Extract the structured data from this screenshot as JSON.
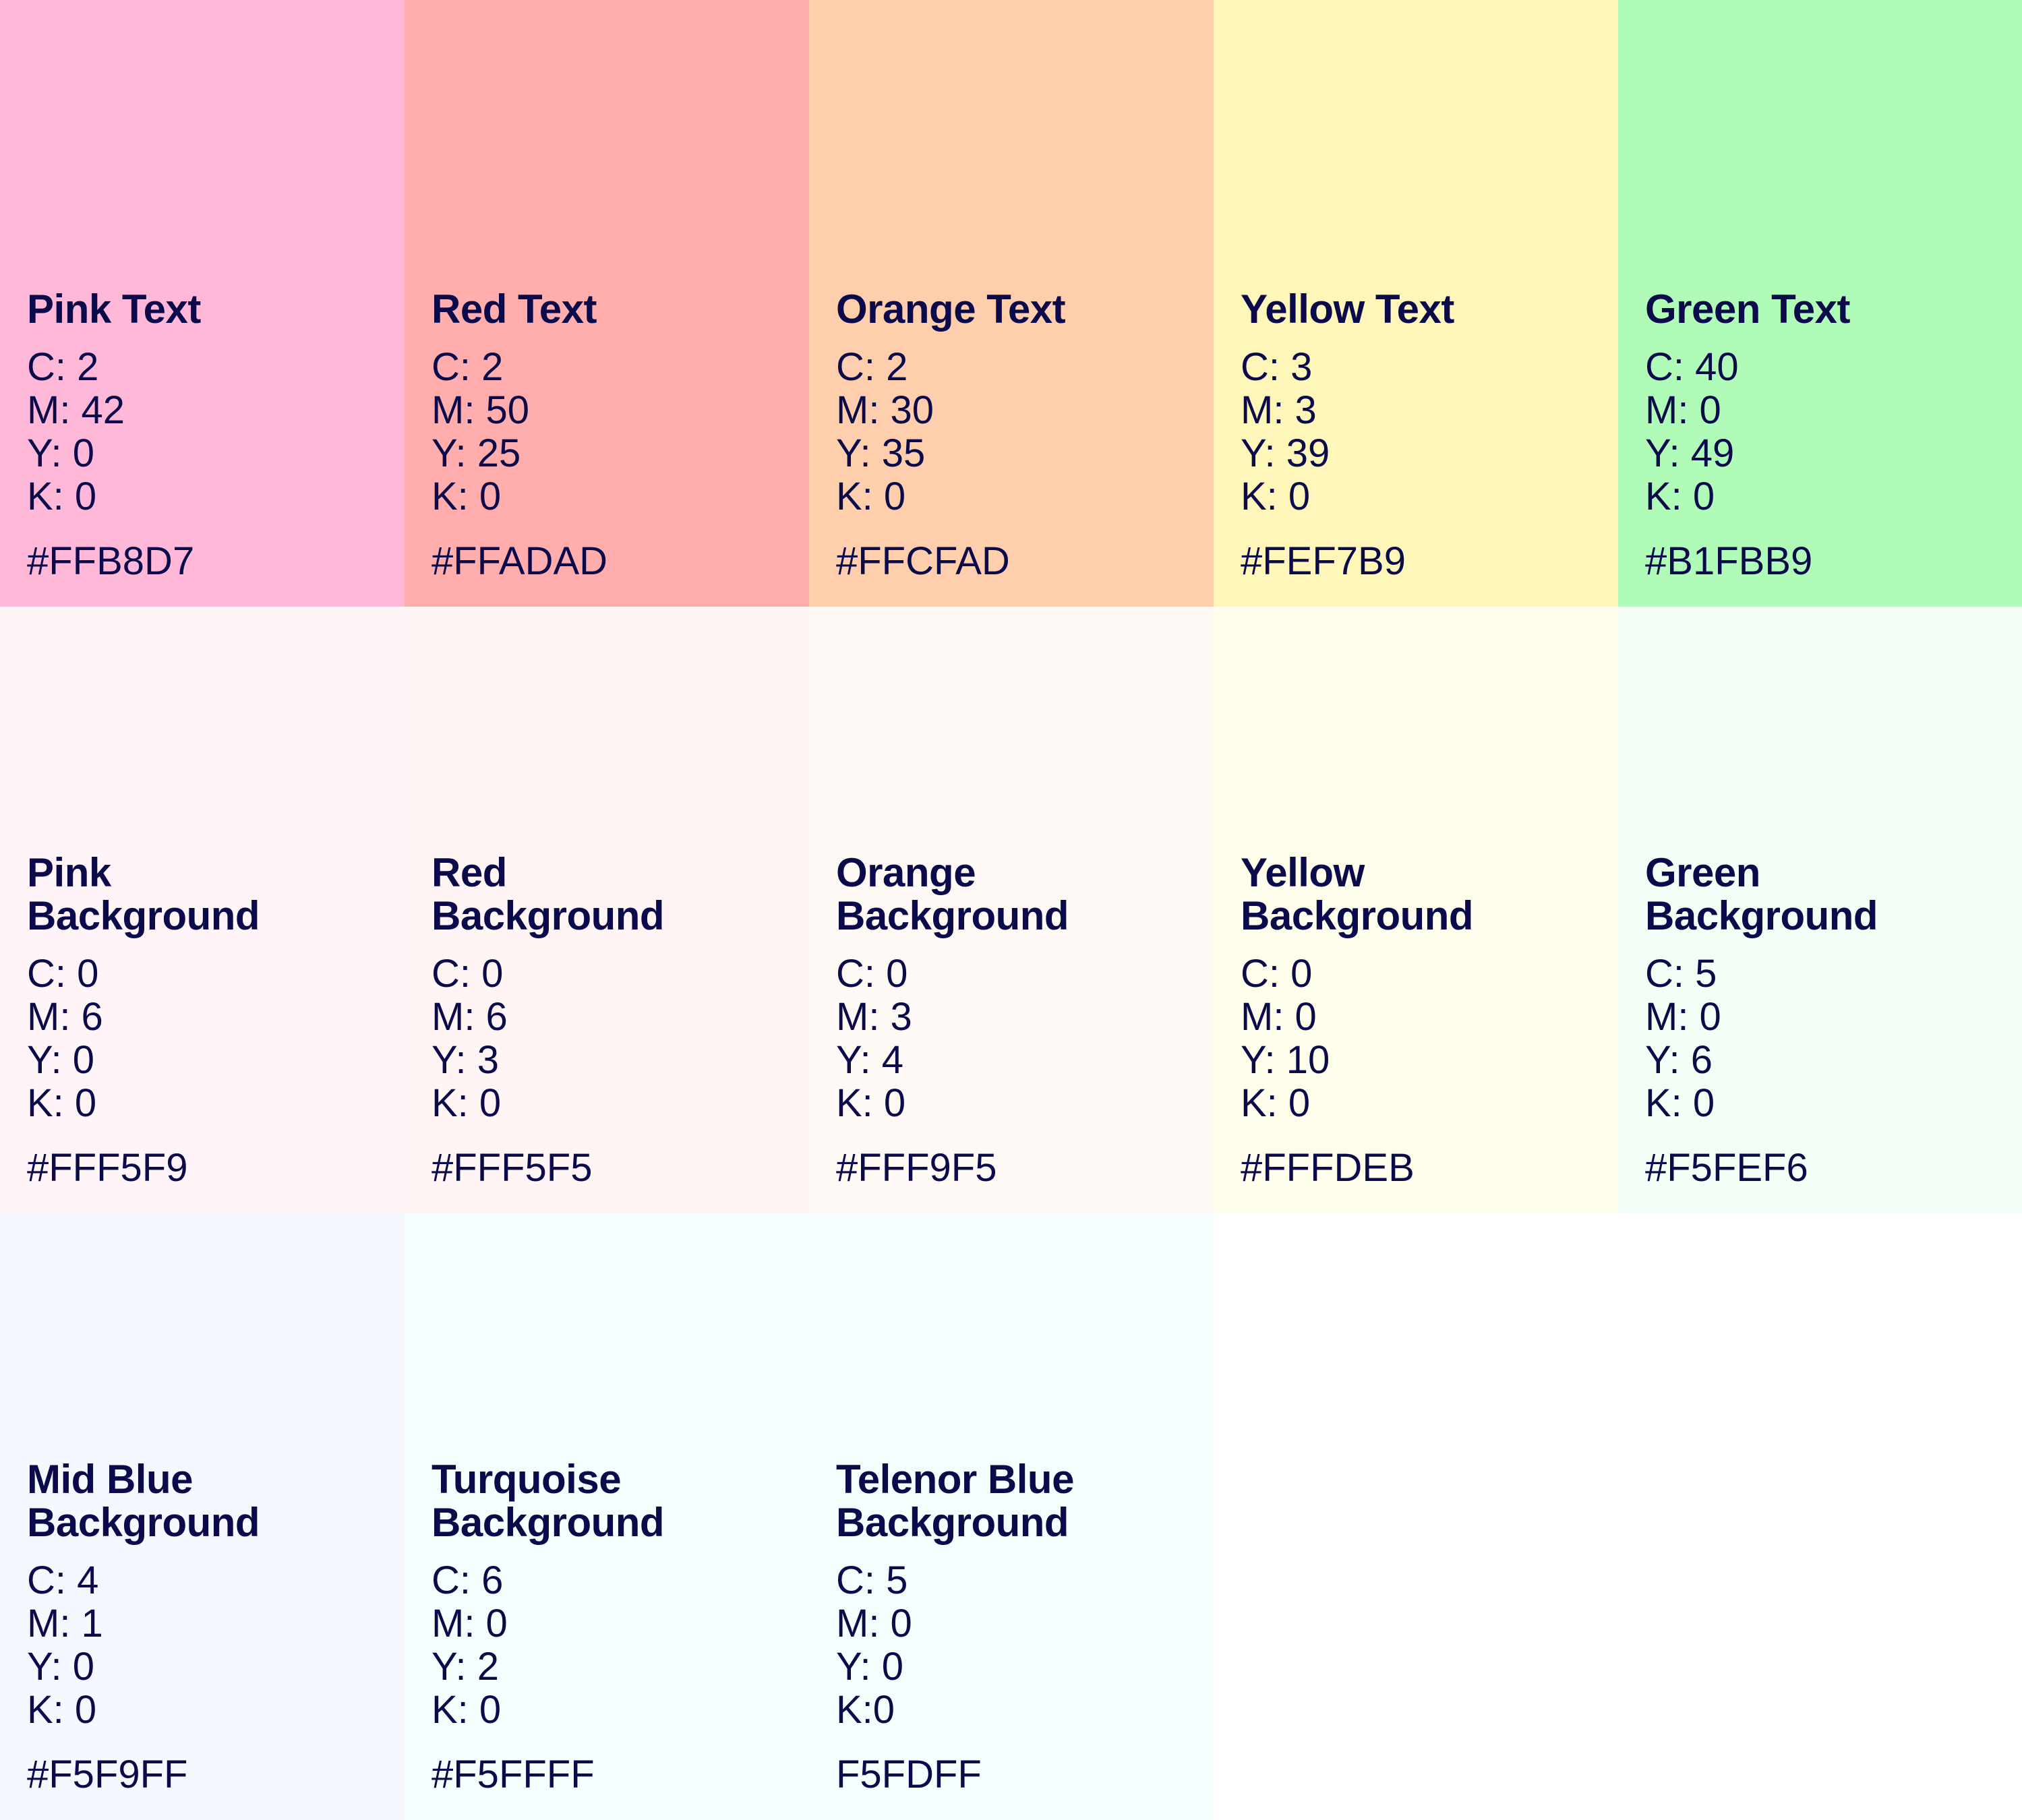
{
  "swatches": [
    {
      "name_line1": "Pink Text",
      "name_line2": "",
      "c": "C: 2",
      "m": "M: 42",
      "y": "Y: 0",
      "k": "K: 0",
      "hex": "#FFB8D7",
      "color": "#FFB8D7"
    },
    {
      "name_line1": "Red Text",
      "name_line2": "",
      "c": "C: 2",
      "m": "M: 50",
      "y": "Y: 25",
      "k": "K: 0",
      "hex": "#FFADAD",
      "color": "#FFADAD"
    },
    {
      "name_line1": "Orange Text",
      "name_line2": "",
      "c": "C: 2",
      "m": "M: 30",
      "y": "Y: 35",
      "k": "K: 0",
      "hex": "#FFCFAD",
      "color": "#FFCFAD"
    },
    {
      "name_line1": "Yellow Text",
      "name_line2": "",
      "c": "C: 3",
      "m": "M: 3",
      "y": "Y: 39",
      "k": "K: 0",
      "hex": "#FEF7B9",
      "color": "#FEF7B9"
    },
    {
      "name_line1": "Green Text",
      "name_line2": "",
      "c": "C: 40",
      "m": "M: 0",
      "y": "Y: 49",
      "k": "K: 0",
      "hex": "#B1FBB9",
      "color": "#B1FBB9"
    },
    {
      "name_line1": "Pink",
      "name_line2": "Background",
      "c": "C: 0",
      "m": "M: 6",
      "y": "Y: 0",
      "k": "K: 0",
      "hex": "#FFF5F9",
      "color": "#FFF5F9"
    },
    {
      "name_line1": "Red",
      "name_line2": "Background",
      "c": "C: 0",
      "m": "M: 6",
      "y": "Y: 3",
      "k": "K: 0",
      "hex": "#FFF5F5",
      "color": "#FFF5F5"
    },
    {
      "name_line1": "Orange",
      "name_line2": "Background",
      "c": "C: 0",
      "m": "M: 3",
      "y": "Y: 4",
      "k": "K: 0",
      "hex": "#FFF9F5",
      "color": "#FFF9F5"
    },
    {
      "name_line1": "Yellow",
      "name_line2": "Background",
      "c": "C: 0",
      "m": "M: 0",
      "y": "Y: 10",
      "k": "K: 0",
      "hex": "#FFFDEB",
      "color": "#FFFDEB"
    },
    {
      "name_line1": "Green",
      "name_line2": "Background",
      "c": "C: 5",
      "m": "M: 0",
      "y": "Y: 6",
      "k": "K: 0",
      "hex": "#F5FEF6",
      "color": "#F5FEF6"
    },
    {
      "name_line1": "Mid Blue",
      "name_line2": "Background",
      "c": "C: 4",
      "m": "M: 1",
      "y": "Y: 0",
      "k": "K: 0",
      "hex": "#F5F9FF",
      "color": "#F5F9FF"
    },
    {
      "name_line1": "Turquoise",
      "name_line2": "Background",
      "c": "C: 6",
      "m": "M: 0",
      "y": "Y: 2",
      "k": "K: 0",
      "hex": "#F5FFFF",
      "color": "#F5FFFF"
    },
    {
      "name_line1": "Telenor Blue",
      "name_line2": "Background",
      "c": "C: 5",
      "m": "M: 0",
      "y": "Y: 0",
      "k": "K:0",
      "hex": "F5FDFF",
      "color": "#F5FDFF"
    }
  ],
  "text_color": "#0B0A4A"
}
